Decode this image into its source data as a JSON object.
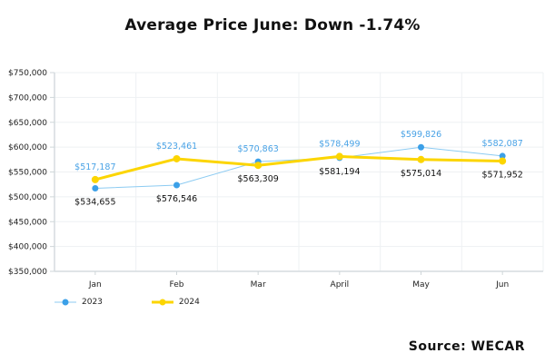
{
  "chart_data": {
    "type": "line",
    "title": "Average Price June: Down -1.74%",
    "xlabel": "",
    "ylabel": "",
    "categories": [
      "Jan",
      "Feb",
      "Mar",
      "April",
      "May",
      "Jun"
    ],
    "yticks": [
      "$350,000",
      "$400,000",
      "$450,000",
      "$500,000",
      "$550,000",
      "$600,000",
      "$650,000",
      "$700,000",
      "$750,000"
    ],
    "ylim": [
      350000,
      750000
    ],
    "grid": true,
    "legend_position": "bottom-left",
    "series": [
      {
        "name": "2023",
        "color": "#3ba0e8",
        "line_color": "#8ccbf2",
        "values": [
          517187,
          523461,
          570863,
          578499,
          599826,
          582087
        ],
        "labels": [
          "$517,187",
          "$523,461",
          "$570,863",
          "$578,499",
          "$599,826",
          "$582,087"
        ],
        "label_color": "#4aa3e6"
      },
      {
        "name": "2024",
        "color": "#fcd500",
        "line_color": "#fcd500",
        "values": [
          534655,
          576546,
          563309,
          581194,
          575014,
          571952
        ],
        "labels": [
          "$534,655",
          "$576,546",
          "$563,309",
          "$581,194",
          "$575,014",
          "$571,952"
        ],
        "label_color": "#111111"
      }
    ],
    "source": "Source: WECAR"
  }
}
